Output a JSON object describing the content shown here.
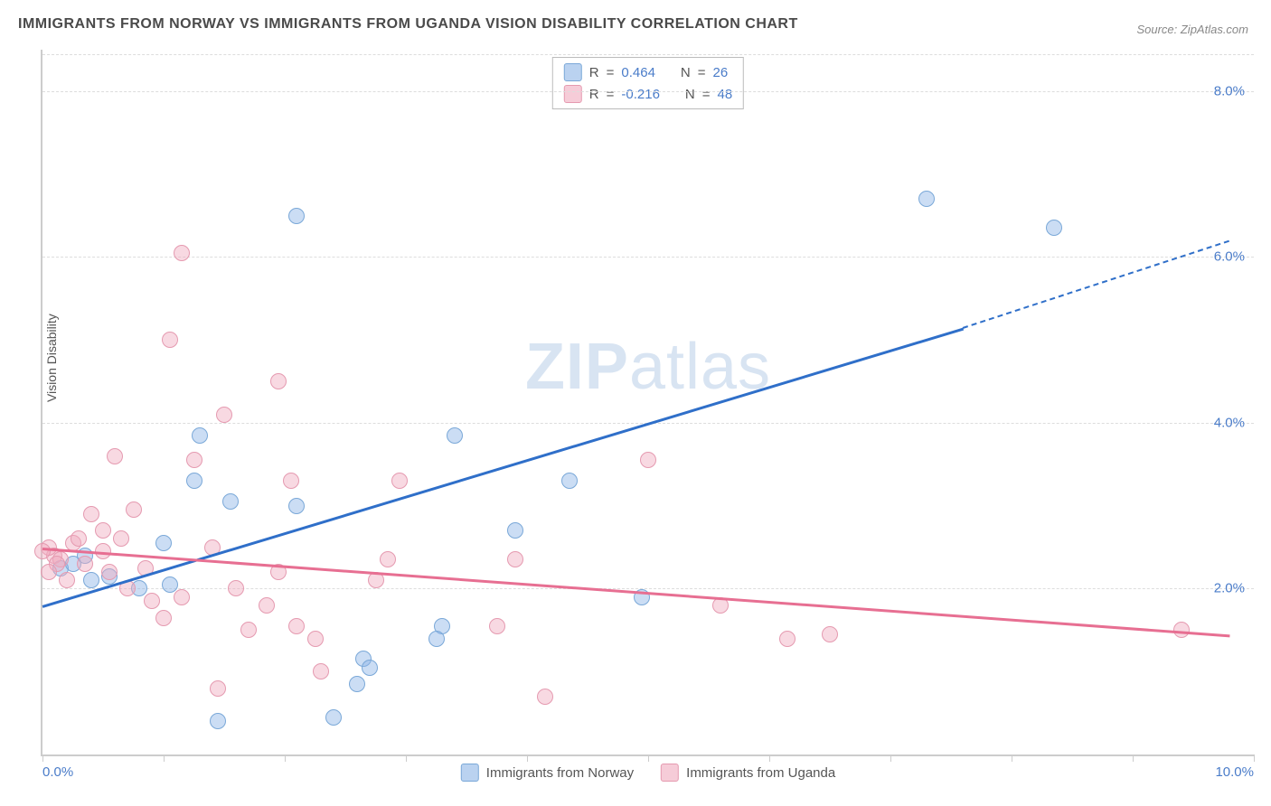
{
  "title": "IMMIGRANTS FROM NORWAY VS IMMIGRANTS FROM UGANDA VISION DISABILITY CORRELATION CHART",
  "source_label": "Source: ",
  "source_name": "ZipAtlas.com",
  "ylabel": "Vision Disability",
  "watermark_bold": "ZIP",
  "watermark_light": "atlas",
  "chart": {
    "type": "scatter",
    "xlim": [
      0,
      10
    ],
    "ylim": [
      0,
      8.5
    ],
    "x_ticks": [
      0,
      1,
      2,
      3,
      4,
      5,
      6,
      7,
      8,
      9,
      10
    ],
    "x_tick_labels": {
      "0": "0.0%",
      "10": "10.0%"
    },
    "y_grid": [
      2,
      4,
      6,
      8
    ],
    "y_tick_labels": {
      "2": "2.0%",
      "4": "4.0%",
      "6": "6.0%",
      "8": "8.0%"
    },
    "background_color": "#ffffff",
    "grid_color": "#dddddd",
    "axis_color": "#cccccc",
    "tick_label_color": "#4a7cc9",
    "label_color": "#555555",
    "title_color": "#4a4a4a",
    "series": [
      {
        "name": "Immigrants from Norway",
        "color_fill": "rgba(140,180,230,0.45)",
        "color_stroke": "#7aa8d8",
        "line_color": "#2f6fc9",
        "R": "0.464",
        "N": "26",
        "trend": {
          "x1": 0,
          "y1": 1.8,
          "x2": 7.6,
          "y2": 5.15,
          "x2_ext": 9.8,
          "y2_ext": 6.2
        },
        "points": [
          [
            1.3,
            3.85
          ],
          [
            2.1,
            6.5
          ],
          [
            0.55,
            2.15
          ],
          [
            0.4,
            2.1
          ],
          [
            1.25,
            3.3
          ],
          [
            1.55,
            3.05
          ],
          [
            1.0,
            2.55
          ],
          [
            2.1,
            3.0
          ],
          [
            2.65,
            1.15
          ],
          [
            3.4,
            3.85
          ],
          [
            4.35,
            3.3
          ],
          [
            3.9,
            2.7
          ],
          [
            1.45,
            0.4
          ],
          [
            2.4,
            0.45
          ],
          [
            2.7,
            1.05
          ],
          [
            2.6,
            0.85
          ],
          [
            4.95,
            1.9
          ],
          [
            3.3,
            1.55
          ],
          [
            3.25,
            1.4
          ],
          [
            7.3,
            6.7
          ],
          [
            8.35,
            6.35
          ],
          [
            0.8,
            2.0
          ],
          [
            0.15,
            2.25
          ],
          [
            0.35,
            2.4
          ],
          [
            0.25,
            2.3
          ],
          [
            1.05,
            2.05
          ]
        ]
      },
      {
        "name": "Immigrants from Uganda",
        "color_fill": "rgba(240,170,190,0.45)",
        "color_stroke": "#e59ab0",
        "line_color": "#e76f92",
        "R": "-0.216",
        "N": "48",
        "trend": {
          "x1": 0,
          "y1": 2.5,
          "x2": 9.8,
          "y2": 1.45
        },
        "points": [
          [
            1.15,
            6.05
          ],
          [
            1.05,
            5.0
          ],
          [
            1.5,
            4.1
          ],
          [
            0.6,
            3.6
          ],
          [
            1.25,
            3.55
          ],
          [
            1.95,
            4.5
          ],
          [
            0.4,
            2.9
          ],
          [
            0.75,
            2.95
          ],
          [
            0.5,
            2.7
          ],
          [
            0.25,
            2.55
          ],
          [
            0.1,
            2.4
          ],
          [
            0.05,
            2.5
          ],
          [
            0.15,
            2.35
          ],
          [
            0.0,
            2.45
          ],
          [
            0.35,
            2.3
          ],
          [
            0.55,
            2.2
          ],
          [
            0.85,
            2.25
          ],
          [
            0.7,
            2.0
          ],
          [
            0.9,
            1.85
          ],
          [
            1.15,
            1.9
          ],
          [
            1.0,
            1.65
          ],
          [
            1.6,
            2.0
          ],
          [
            1.95,
            2.2
          ],
          [
            1.85,
            1.8
          ],
          [
            2.05,
            3.3
          ],
          [
            1.4,
            2.5
          ],
          [
            1.7,
            1.5
          ],
          [
            2.1,
            1.55
          ],
          [
            2.25,
            1.4
          ],
          [
            2.75,
            2.1
          ],
          [
            2.95,
            3.3
          ],
          [
            2.85,
            2.35
          ],
          [
            3.9,
            2.35
          ],
          [
            3.75,
            1.55
          ],
          [
            4.15,
            0.7
          ],
          [
            2.3,
            1.0
          ],
          [
            1.45,
            0.8
          ],
          [
            5.0,
            3.55
          ],
          [
            5.6,
            1.8
          ],
          [
            6.15,
            1.4
          ],
          [
            6.5,
            1.45
          ],
          [
            9.4,
            1.5
          ],
          [
            0.2,
            2.1
          ],
          [
            0.3,
            2.6
          ],
          [
            0.12,
            2.3
          ],
          [
            0.05,
            2.2
          ],
          [
            0.5,
            2.45
          ],
          [
            0.65,
            2.6
          ]
        ]
      }
    ]
  },
  "legend_top": {
    "r_label": "R",
    "n_label": "N",
    "eq": " = "
  },
  "legend_bottom": {
    "items": [
      "Immigrants from Norway",
      "Immigrants from Uganda"
    ]
  }
}
